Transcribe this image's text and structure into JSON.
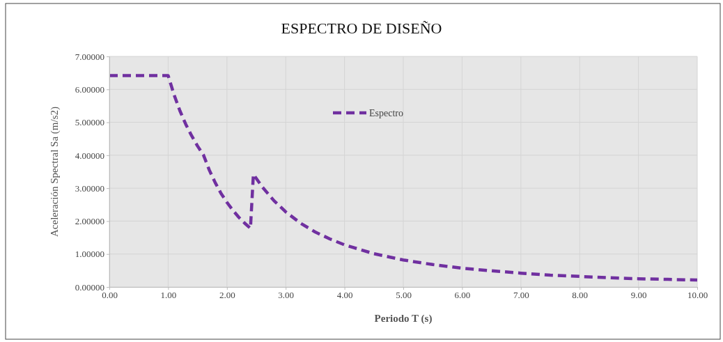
{
  "chart_data": {
    "type": "line",
    "title": "ESPECTRO DE DISEÑO",
    "xlabel": "Periodo T (s)",
    "ylabel": "Aceleración Spectral Sa (m/s2)",
    "xlim": [
      0,
      10
    ],
    "xticks": [
      {
        "value": 0,
        "label": "0.00"
      },
      {
        "value": 1,
        "label": "1.00"
      },
      {
        "value": 2,
        "label": "2.00"
      },
      {
        "value": 3,
        "label": "3.00"
      },
      {
        "value": 4,
        "label": "4.00"
      },
      {
        "value": 5,
        "label": "5.00"
      },
      {
        "value": 6,
        "label": "6.00"
      },
      {
        "value": 7,
        "label": "7.00"
      },
      {
        "value": 8,
        "label": "8.00"
      },
      {
        "value": 9,
        "label": "9.00"
      },
      {
        "value": 10,
        "label": "10.00"
      }
    ],
    "ylim": [
      0,
      7
    ],
    "yticks": [
      {
        "value": 0,
        "label": "0.00000"
      },
      {
        "value": 1,
        "label": "1.00000"
      },
      {
        "value": 2,
        "label": "2.00000"
      },
      {
        "value": 3,
        "label": "3.00000"
      },
      {
        "value": 4,
        "label": "4.00000"
      },
      {
        "value": 5,
        "label": "5.00000"
      },
      {
        "value": 6,
        "label": "6.00000"
      },
      {
        "value": 7,
        "label": "7.00000"
      }
    ],
    "grid": true,
    "legend": "top",
    "line_style": "dashed",
    "marker": "none",
    "series": [
      {
        "name": "Espectro",
        "color": "#7030a0",
        "x": [
          0,
          0.5,
          1,
          1.1,
          1.2,
          1.3,
          1.4,
          1.5,
          1.6,
          1.7,
          1.8,
          1.9,
          2,
          2.1,
          2.2,
          2.3,
          2.4,
          2.45,
          2.6,
          2.8,
          3,
          3.25,
          3.5,
          3.75,
          4,
          4.5,
          5,
          5.5,
          6,
          6.5,
          7,
          7.5,
          8,
          8.5,
          9,
          9.5,
          10
        ],
        "values": [
          6.42,
          6.42,
          6.42,
          5.84,
          5.35,
          4.94,
          4.59,
          4.28,
          4.01,
          3.55,
          3.17,
          2.84,
          2.57,
          2.33,
          2.12,
          1.94,
          1.78,
          3.42,
          3.04,
          2.62,
          2.28,
          1.94,
          1.67,
          1.46,
          1.28,
          1.01,
          0.82,
          0.68,
          0.57,
          0.49,
          0.42,
          0.36,
          0.32,
          0.28,
          0.25,
          0.23,
          0.21
        ]
      }
    ]
  }
}
